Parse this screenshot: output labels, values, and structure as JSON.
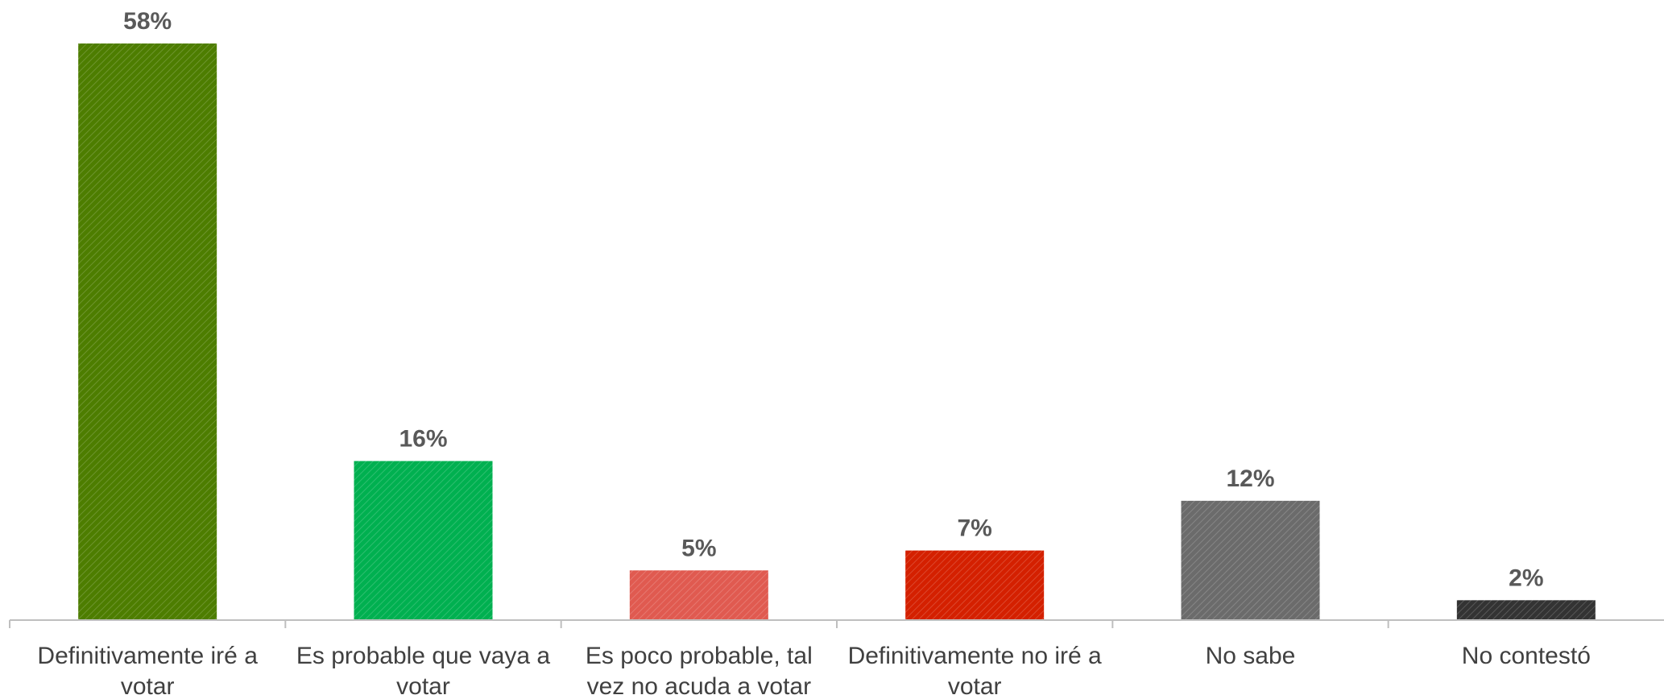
{
  "chart_data": {
    "type": "bar",
    "categories": [
      [
        "Definitivamente iré a",
        "votar"
      ],
      [
        "Es probable que vaya a",
        "votar"
      ],
      [
        "Es poco probable, tal",
        "vez no acuda a votar"
      ],
      [
        "Definitivamente no iré a",
        "votar"
      ],
      [
        "No sabe"
      ],
      [
        "No contestó"
      ]
    ],
    "values": [
      58,
      16,
      5,
      7,
      12,
      2
    ],
    "value_labels": [
      "58%",
      "16%",
      "5%",
      "7%",
      "12%",
      "2%"
    ],
    "colors": [
      "#4d7d00",
      "#00b050",
      "#e05a50",
      "#d42000",
      "#6b6b6b",
      "#333333"
    ],
    "ylim": [
      0,
      58
    ],
    "grid": false,
    "legend": "none"
  }
}
